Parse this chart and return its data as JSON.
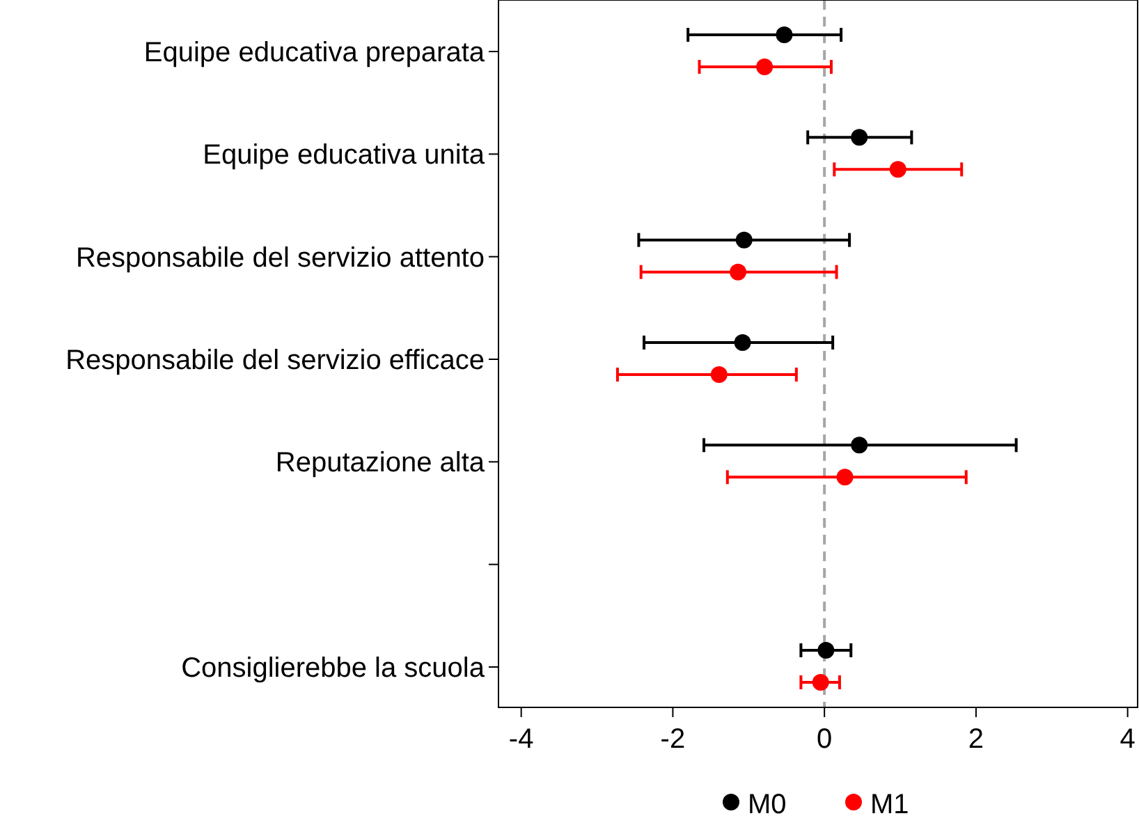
{
  "chart_data": {
    "type": "scatter",
    "orientation": "horizontal",
    "marker": "circle",
    "legend": "bottom",
    "grid": false,
    "categories": [
      "Equipe educativa preparata",
      "Equipe educativa unita",
      "Responsabile del servizio attento",
      "Responsabile del servizio efficace",
      "Reputazione alta",
      null,
      "Consiglierebbe la scuola"
    ],
    "xlim": [
      -4.3,
      4.15
    ],
    "xticks": [
      -4,
      -2,
      0,
      2,
      4
    ],
    "ref_lines": [
      {
        "axis": "x",
        "value": 0,
        "color": "#a6a6a6",
        "line_style": "dashed"
      }
    ],
    "series": [
      {
        "name": "M0",
        "color": "#000000",
        "values": [
          -0.53,
          0.46,
          -1.06,
          -1.08,
          0.46,
          null,
          0.02
        ],
        "errors": [
          [
            -1.8,
            0.22
          ],
          [
            -0.22,
            1.15
          ],
          [
            -2.45,
            0.33
          ],
          [
            -2.38,
            0.11
          ],
          [
            -1.59,
            2.53
          ],
          null,
          [
            -0.31,
            0.35
          ]
        ]
      },
      {
        "name": "M1",
        "color": "#ff0000",
        "values": [
          -0.79,
          0.97,
          -1.14,
          -1.39,
          0.27,
          null,
          -0.05
        ],
        "errors": [
          [
            -1.65,
            0.09
          ],
          [
            0.13,
            1.81
          ],
          [
            -2.42,
            0.16
          ],
          [
            -2.73,
            -0.37
          ],
          [
            -1.28,
            1.87
          ],
          null,
          [
            -0.31,
            0.2
          ]
        ]
      }
    ]
  }
}
